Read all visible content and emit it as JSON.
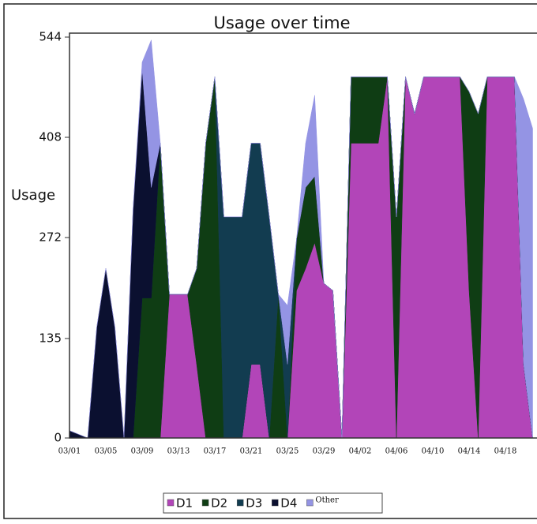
{
  "chart_data": {
    "type": "stacked_area",
    "title": "Usage over time",
    "y_label": "Usage",
    "categories": [
      "03/01",
      null,
      null,
      null,
      "03/05",
      null,
      null,
      null,
      "03/09",
      null,
      null,
      null,
      "03/13",
      null,
      null,
      null,
      "03/17",
      null,
      null,
      null,
      "03/21",
      null,
      null,
      null,
      "03/25",
      null,
      null,
      null,
      "03/29",
      null,
      null,
      null,
      "04/02",
      null,
      null,
      null,
      "04/06",
      null,
      null,
      null,
      "04/10",
      null,
      null,
      null,
      "04/14",
      null,
      null,
      null,
      "04/18",
      null,
      null,
      null
    ],
    "ylim": [
      0,
      544
    ],
    "yticks": [
      0,
      135,
      272,
      408,
      544
    ],
    "series": [
      {
        "name": "D1",
        "color": "#b245b8",
        "values": [
          0,
          0,
          0,
          0,
          0,
          0,
          0,
          0,
          0,
          0,
          0,
          195,
          195,
          195,
          100,
          0,
          0,
          0,
          0,
          0,
          100,
          100,
          0,
          0,
          0,
          200,
          230,
          265,
          210,
          200,
          0,
          400,
          400,
          400,
          400,
          490,
          0,
          490,
          440,
          490,
          490,
          490,
          490,
          490,
          200,
          0,
          490,
          490,
          490,
          490,
          100,
          0
        ]
      },
      {
        "name": "D2",
        "color": "#0f3d14",
        "values": [
          0,
          0,
          0,
          0,
          0,
          0,
          0,
          0,
          190,
          190,
          400,
          0,
          0,
          0,
          130,
          400,
          490,
          0,
          0,
          0,
          0,
          0,
          0,
          195,
          0,
          70,
          110,
          90,
          0,
          0,
          0,
          90,
          90,
          90,
          90,
          0,
          300,
          0,
          0,
          0,
          0,
          0,
          0,
          0,
          270,
          440,
          0,
          0,
          0,
          0,
          0,
          0
        ]
      },
      {
        "name": "D3",
        "color": "#123c50",
        "values": [
          0,
          0,
          0,
          0,
          0,
          0,
          0,
          0,
          0,
          0,
          0,
          0,
          0,
          0,
          0,
          0,
          0,
          300,
          300,
          300,
          300,
          300,
          300,
          0,
          100,
          0,
          0,
          0,
          0,
          0,
          0,
          0,
          0,
          0,
          0,
          0,
          0,
          0,
          0,
          0,
          0,
          0,
          0,
          0,
          0,
          0,
          0,
          0,
          0,
          0,
          0,
          0
        ]
      },
      {
        "name": "D4",
        "color": "#0b1030",
        "values": [
          10,
          5,
          0,
          150,
          230,
          150,
          0,
          310,
          310,
          150,
          0,
          0,
          0,
          0,
          0,
          0,
          0,
          0,
          0,
          0,
          0,
          0,
          0,
          0,
          0,
          0,
          0,
          0,
          0,
          0,
          0,
          0,
          0,
          0,
          0,
          0,
          0,
          0,
          0,
          0,
          0,
          0,
          0,
          0,
          0,
          0,
          0,
          0,
          0,
          0,
          0,
          0
        ]
      },
      {
        "name": "Other",
        "color": "#9494e4",
        "values": [
          0,
          0,
          0,
          0,
          0,
          0,
          0,
          0,
          10,
          200,
          0,
          0,
          0,
          0,
          0,
          0,
          0,
          0,
          0,
          0,
          0,
          0,
          0,
          0,
          80,
          0,
          60,
          110,
          0,
          0,
          0,
          0,
          0,
          0,
          0,
          0,
          0,
          0,
          0,
          0,
          0,
          0,
          0,
          0,
          0,
          0,
          0,
          0,
          0,
          0,
          360,
          420
        ]
      }
    ]
  }
}
